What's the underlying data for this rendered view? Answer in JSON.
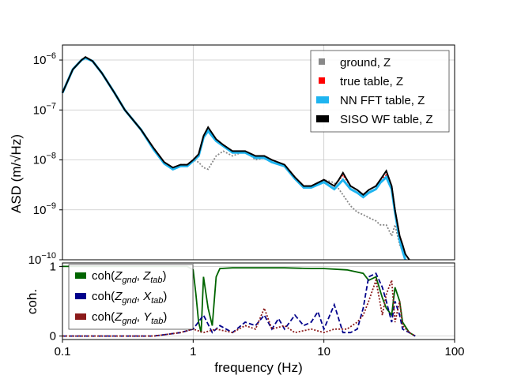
{
  "chart_data": [
    {
      "type": "line",
      "ylabel": "ASD (m/√Hz)",
      "yscale": "log",
      "xscale": "log",
      "xlim": [
        0.1,
        100
      ],
      "ylim": [
        1e-10,
        2e-06
      ],
      "grid": true,
      "legend_position": "top-right",
      "ytick_labels": [
        {
          "base": "10",
          "exp": "−6",
          "value": 1e-06
        },
        {
          "base": "10",
          "exp": "−7",
          "value": 1e-07
        },
        {
          "base": "10",
          "exp": "−8",
          "value": 1e-08
        },
        {
          "base": "10",
          "exp": "−9",
          "value": 1e-09
        },
        {
          "base": "10",
          "exp": "−10",
          "value": 1e-10
        }
      ],
      "series": [
        {
          "name": "ground, Z",
          "color": "#888888",
          "style": "dotted",
          "x": [
            0.1,
            0.12,
            0.14,
            0.15,
            0.17,
            0.2,
            0.25,
            0.3,
            0.4,
            0.5,
            0.6,
            0.7,
            0.8,
            0.9,
            1.0,
            1.1,
            1.2,
            1.3,
            1.5,
            1.7,
            2,
            2.5,
            3,
            3.5,
            4,
            5,
            6,
            7,
            8,
            10,
            12,
            14,
            16,
            18,
            20,
            22,
            25,
            27,
            30,
            33,
            35,
            38,
            40
          ],
          "y": [
            2.2e-07,
            6.5e-07,
            1e-06,
            1.1e-06,
            9.5e-07,
            5.5e-07,
            2.2e-07,
            1e-07,
            4e-08,
            1.7e-08,
            9e-09,
            7e-09,
            8e-09,
            8e-09,
            1e-08,
            9e-09,
            7e-09,
            6.5e-09,
            1.2e-08,
            1.5e-08,
            1.2e-08,
            1.5e-08,
            1e-08,
            1.1e-08,
            9e-09,
            8e-09,
            4.5e-09,
            3e-09,
            3e-09,
            4e-09,
            3.5e-09,
            2e-09,
            1.2e-09,
            9e-10,
            8e-10,
            7e-10,
            6e-10,
            5e-10,
            5e-10,
            3e-10,
            5e-10,
            2e-10,
            1.5e-10
          ]
        },
        {
          "name": "true table, Z",
          "color": "#ff0000",
          "style": "dotted",
          "x": [
            0.1,
            0.12,
            0.14,
            0.15,
            0.17,
            0.2,
            0.25,
            0.3,
            0.4,
            0.5,
            0.6,
            0.7,
            0.8,
            0.9,
            1.0,
            1.1,
            1.2,
            1.3,
            1.5,
            1.7,
            2,
            2.5,
            3,
            3.5,
            4,
            5,
            6,
            7,
            8,
            10,
            12,
            14,
            16,
            18,
            20,
            22,
            25,
            27,
            30,
            33,
            35,
            38,
            40,
            42
          ],
          "y": [
            2.2e-07,
            6.5e-07,
            1e-06,
            1.1e-06,
            9.5e-07,
            5.5e-07,
            2.2e-07,
            1e-07,
            4e-08,
            1.7e-08,
            9e-09,
            7e-09,
            8e-09,
            8e-09,
            1e-08,
            1.3e-08,
            3e-08,
            4e-08,
            2.5e-08,
            2e-08,
            1.5e-08,
            1.5e-08,
            1.2e-08,
            1.2e-08,
            1e-08,
            8e-09,
            4.5e-09,
            3e-09,
            3e-09,
            4e-09,
            3e-09,
            5e-09,
            3e-09,
            2.5e-09,
            2e-09,
            2.5e-09,
            3e-09,
            4e-09,
            5e-09,
            3e-09,
            1e-09,
            3e-10,
            2e-10,
            1.2e-10
          ]
        },
        {
          "name": "NN FFT table, Z",
          "color": "#1eb4f0",
          "style": "solid",
          "x": [
            0.1,
            0.12,
            0.14,
            0.15,
            0.17,
            0.2,
            0.25,
            0.3,
            0.4,
            0.5,
            0.6,
            0.7,
            0.8,
            0.9,
            1.0,
            1.1,
            1.2,
            1.3,
            1.5,
            1.7,
            2,
            2.5,
            3,
            3.5,
            4,
            5,
            6,
            7,
            8,
            10,
            12,
            14,
            16,
            18,
            20,
            22,
            25,
            27,
            30,
            33,
            35,
            38,
            40,
            42
          ],
          "y": [
            2.2e-07,
            6.5e-07,
            1e-06,
            1.1e-06,
            9.5e-07,
            5.5e-07,
            2.2e-07,
            1e-07,
            4e-08,
            1.6e-08,
            8.5e-09,
            6.5e-09,
            7.5e-09,
            7.5e-09,
            9.5e-09,
            1.2e-08,
            2.8e-08,
            3.8e-08,
            2.4e-08,
            1.9e-08,
            1.4e-08,
            1.4e-08,
            1.1e-08,
            1.1e-08,
            9e-09,
            7.5e-09,
            4.2e-09,
            2.8e-09,
            2.8e-09,
            3.6e-09,
            2.6e-09,
            4e-09,
            2.6e-09,
            2.2e-09,
            1.8e-09,
            2.2e-09,
            2.6e-09,
            3.5e-09,
            4.5e-09,
            2.6e-09,
            9e-10,
            2.5e-10,
            1.5e-10,
            1e-10
          ]
        },
        {
          "name": "SISO WF table, Z",
          "color": "#000000",
          "style": "solid",
          "x": [
            0.1,
            0.12,
            0.14,
            0.15,
            0.17,
            0.2,
            0.25,
            0.3,
            0.4,
            0.5,
            0.6,
            0.7,
            0.8,
            0.9,
            1.0,
            1.1,
            1.2,
            1.3,
            1.5,
            1.7,
            2,
            2.5,
            3,
            3.5,
            4,
            5,
            6,
            7,
            8,
            10,
            12,
            13,
            14,
            16,
            18,
            20,
            22,
            25,
            27,
            30,
            33,
            35,
            38,
            40,
            42,
            45
          ],
          "y": [
            2.2e-07,
            6.5e-07,
            1e-06,
            1.15e-06,
            9.5e-07,
            5.5e-07,
            2.2e-07,
            1e-07,
            4e-08,
            1.7e-08,
            9e-09,
            7e-09,
            8e-09,
            8e-09,
            1e-08,
            1.3e-08,
            3e-08,
            4.5e-08,
            2.6e-08,
            2e-08,
            1.5e-08,
            1.5e-08,
            1.2e-08,
            1.2e-08,
            1e-08,
            8e-09,
            4.5e-09,
            3e-09,
            3e-09,
            4e-09,
            3e-09,
            4e-09,
            5.5e-09,
            3e-09,
            2.5e-09,
            2e-09,
            2.5e-09,
            3e-09,
            4e-09,
            6e-09,
            3e-09,
            1e-09,
            3e-10,
            2e-10,
            1.3e-10,
            1e-10
          ]
        }
      ]
    },
    {
      "type": "line",
      "xlabel": "frequency (Hz)",
      "ylabel": "coh.",
      "xscale": "log",
      "xlim": [
        0.1,
        100
      ],
      "ylim": [
        -0.05,
        1.05
      ],
      "grid": true,
      "legend_position": "left",
      "xtick_labels": [
        {
          "label": "0.1",
          "value": 0.1
        },
        {
          "label": "1",
          "value": 1
        },
        {
          "label": "10",
          "value": 10
        },
        {
          "label": "100",
          "value": 100
        }
      ],
      "ytick_labels": [
        {
          "label": "0",
          "value": 0
        },
        {
          "label": "1",
          "value": 1
        }
      ],
      "series": [
        {
          "legend": {
            "pre": "coh(",
            "v1": "Z",
            "s1": "gnd",
            "v2": "Z",
            "s2": "tab",
            "post": ")"
          },
          "color": "#006400",
          "style": "solid",
          "x": [
            0.1,
            0.15,
            0.2,
            0.3,
            0.4,
            0.5,
            0.6,
            0.7,
            0.8,
            0.9,
            1.0,
            1.05,
            1.1,
            1.15,
            1.2,
            1.3,
            1.4,
            1.5,
            1.6,
            2,
            3,
            5,
            8,
            10,
            15,
            20,
            22,
            25,
            28,
            30,
            33,
            35,
            38,
            40,
            45,
            50
          ],
          "y": [
            1.0,
            1.0,
            1.0,
            1.0,
            1.0,
            1.0,
            1.0,
            1.0,
            1.0,
            1.0,
            0.95,
            0.6,
            0.2,
            0.05,
            0.85,
            0.4,
            0.15,
            0.85,
            0.97,
            0.98,
            0.98,
            0.98,
            0.97,
            0.97,
            0.95,
            0.9,
            0.8,
            0.85,
            0.55,
            0.4,
            0.3,
            0.7,
            0.5,
            0.2,
            0.05,
            0.0
          ]
        },
        {
          "legend": {
            "pre": "coh(",
            "v1": "Z",
            "s1": "gnd",
            "v2": "X",
            "s2": "tab",
            "post": ")"
          },
          "color": "#00008b",
          "style": "dashed",
          "x": [
            0.1,
            0.5,
            0.8,
            1.0,
            1.2,
            1.4,
            1.6,
            2,
            2.5,
            3,
            3.5,
            4,
            4.5,
            5,
            6,
            7,
            8,
            9,
            10,
            12,
            14,
            16,
            18,
            20,
            22,
            25,
            28,
            30,
            33,
            35,
            38,
            40,
            45,
            50
          ],
          "y": [
            0.0,
            0.0,
            0.05,
            0.1,
            0.3,
            0.05,
            0.15,
            0.05,
            0.2,
            0.15,
            0.3,
            0.1,
            0.25,
            0.1,
            0.3,
            0.15,
            0.2,
            0.35,
            0.1,
            0.45,
            0.05,
            0.05,
            0.1,
            0.4,
            0.85,
            0.9,
            0.7,
            0.5,
            0.2,
            0.5,
            0.3,
            0.1,
            0.05,
            0.0
          ]
        },
        {
          "legend": {
            "pre": "coh(",
            "v1": "Z",
            "s1": "gnd",
            "v2": "Y",
            "s2": "tab",
            "post": ")"
          },
          "color": "#8b1a1a",
          "style": "dotted",
          "x": [
            0.1,
            0.5,
            0.8,
            1.0,
            1.2,
            1.5,
            2,
            2.5,
            3,
            3.5,
            4,
            5,
            6,
            8,
            10,
            12,
            15,
            18,
            20,
            22,
            25,
            28,
            30,
            33,
            35,
            38,
            40,
            45,
            50
          ],
          "y": [
            0.0,
            0.0,
            0.05,
            0.1,
            0.05,
            0.1,
            0.05,
            0.15,
            0.1,
            0.4,
            0.1,
            0.15,
            0.05,
            0.1,
            0.05,
            0.1,
            0.1,
            0.2,
            0.3,
            0.5,
            0.8,
            0.3,
            0.6,
            0.8,
            0.2,
            0.5,
            0.15,
            0.05,
            0.0
          ]
        }
      ]
    }
  ]
}
